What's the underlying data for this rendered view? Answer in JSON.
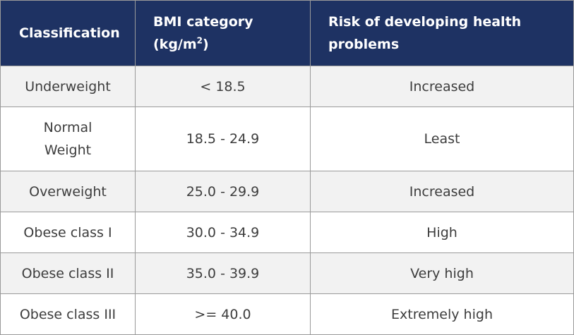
{
  "table": {
    "headers": {
      "classification": "Classification",
      "bmi_category_prefix": "BMI category (kg/m",
      "bmi_category_exponent": "2",
      "bmi_category_suffix": ")",
      "risk": "Risk of developing health problems"
    },
    "rows": [
      {
        "classification": "Underweight",
        "bmi": "< 18.5",
        "risk": "Increased"
      },
      {
        "classification": "Normal Weight",
        "bmi": "18.5 - 24.9",
        "risk": "Least"
      },
      {
        "classification": "Overweight",
        "bmi": "25.0 - 29.9",
        "risk": "Increased"
      },
      {
        "classification": "Obese class I",
        "bmi": "30.0 - 34.9",
        "risk": "High"
      },
      {
        "classification": "Obese class II",
        "bmi": "35.0 - 39.9",
        "risk": "Very high"
      },
      {
        "classification": "Obese class III",
        "bmi": ">= 40.0",
        "risk": "Extremely high"
      }
    ],
    "colors": {
      "header_background": "#1e3263",
      "header_text": "#ffffff",
      "stripe_background": "#f2f2f2",
      "row_background": "#ffffff",
      "border": "#9a9a9a",
      "body_text": "#3d3d3d"
    }
  }
}
